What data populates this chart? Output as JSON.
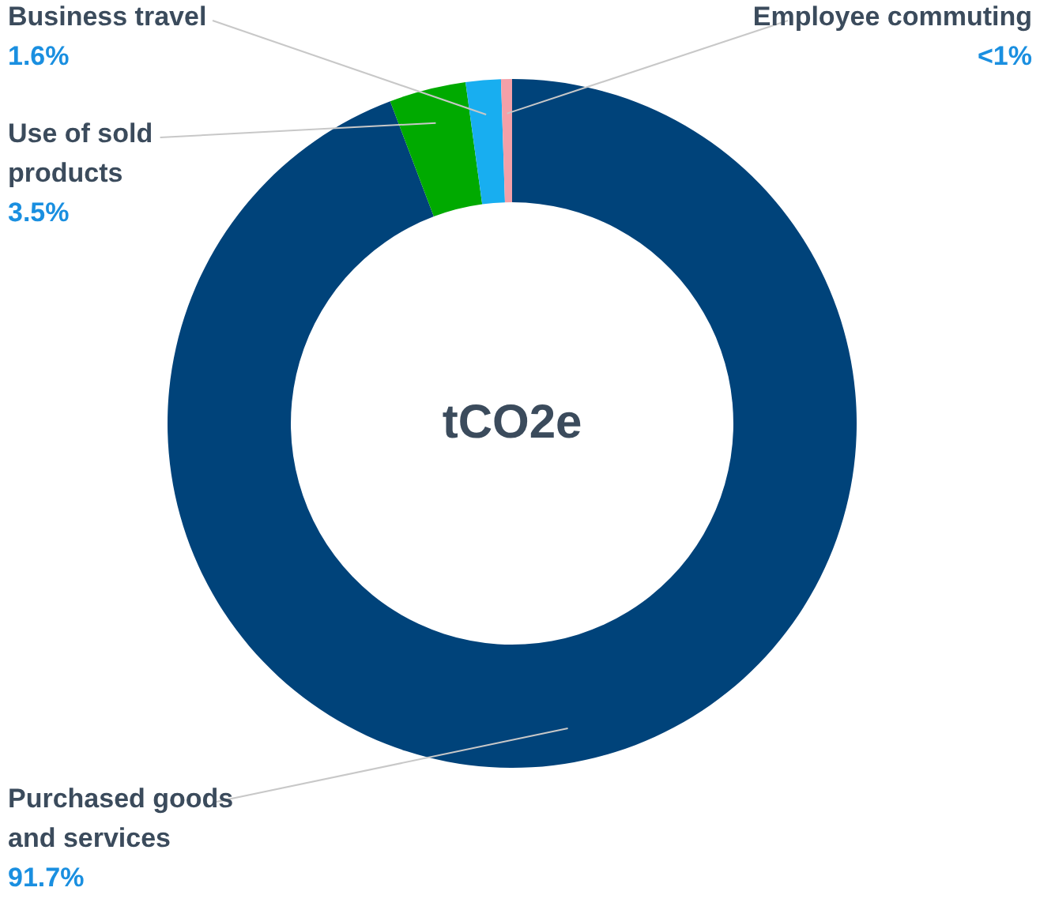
{
  "chart_data": {
    "type": "donut",
    "categories": [
      "Purchased goods and services",
      "Use of sold products",
      "Business travel",
      "Employee commuting"
    ],
    "values": [
      91.7,
      3.5,
      1.6,
      0.5
    ],
    "value_labels": [
      "91.7%",
      "3.5%",
      "1.6%",
      "<1%"
    ],
    "colors": [
      "#00437a",
      "#00aa00",
      "#18aef0",
      "#f4a0a8"
    ],
    "annotations": [
      "tCO2e"
    ]
  }
}
